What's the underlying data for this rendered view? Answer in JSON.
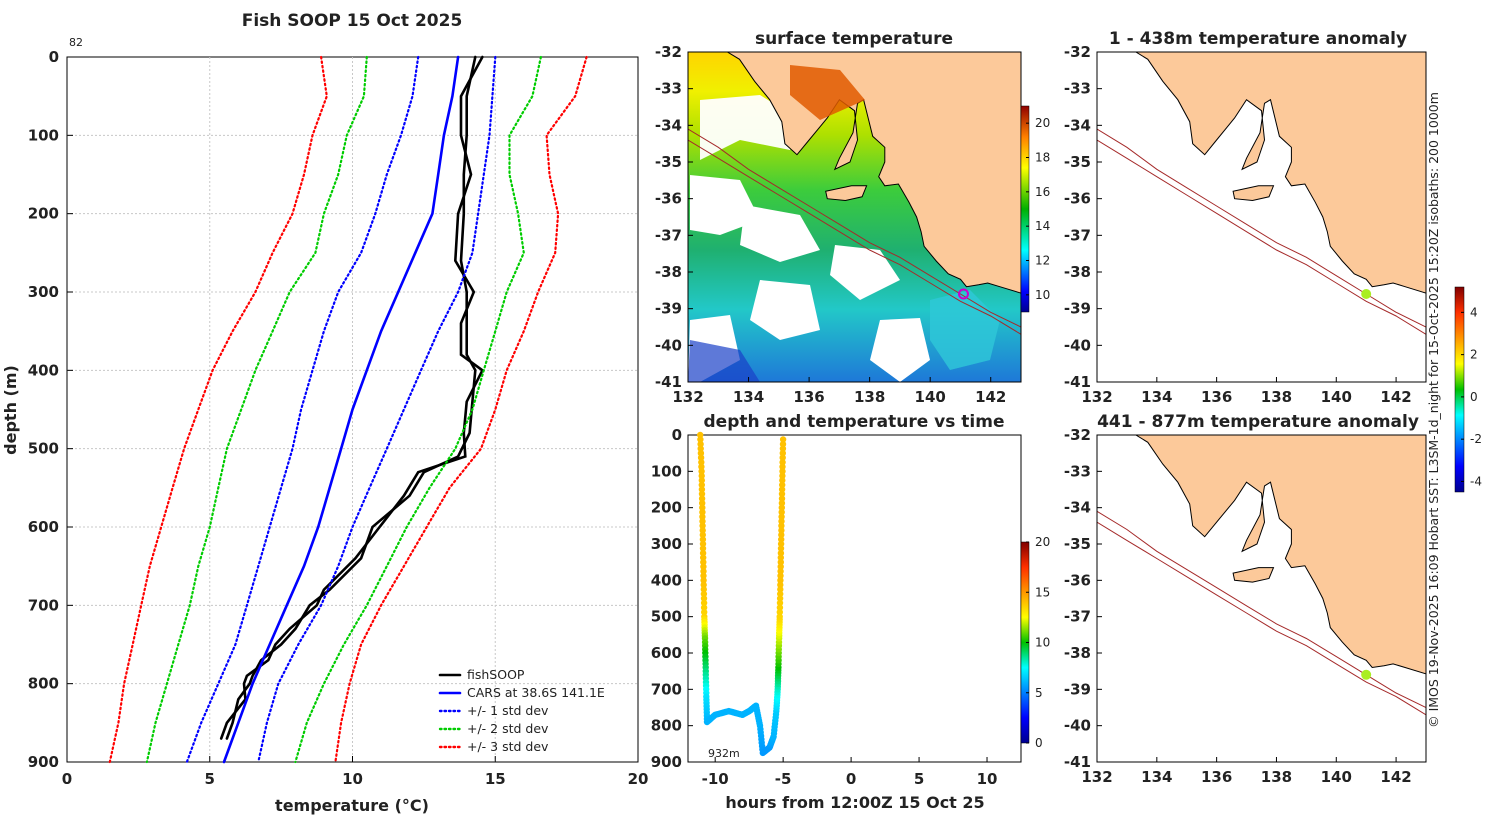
{
  "chart_data": [
    {
      "type": "line",
      "title": "Fish SOOP 15 Oct 2025",
      "xlabel": "temperature (°C)",
      "ylabel": "depth (m)",
      "xlim": [
        0,
        20
      ],
      "ylim": [
        900,
        0
      ],
      "xticks": [
        0,
        5,
        10,
        15,
        20
      ],
      "yticks": [
        0,
        100,
        200,
        300,
        400,
        500,
        600,
        700,
        800,
        900
      ],
      "corner_note": "82",
      "series": [
        {
          "name": "fishSOOP",
          "color": "#000000",
          "style": "solid",
          "points": [
            [
              14.3,
              0
            ],
            [
              14.0,
              50
            ],
            [
              14.0,
              100
            ],
            [
              13.9,
              150
            ],
            [
              13.9,
              200
            ],
            [
              13.8,
              260
            ],
            [
              14.0,
              300
            ],
            [
              14.0,
              340
            ],
            [
              14.0,
              380
            ],
            [
              14.3,
              400
            ],
            [
              14.2,
              440
            ],
            [
              14.1,
              480
            ],
            [
              13.7,
              510
            ],
            [
              12.5,
              530
            ],
            [
              12.0,
              560
            ],
            [
              10.7,
              600
            ],
            [
              10.3,
              640
            ],
            [
              9.2,
              680
            ],
            [
              8.5,
              700
            ],
            [
              8.0,
              730
            ],
            [
              7.5,
              750
            ],
            [
              6.8,
              770
            ],
            [
              6.5,
              790
            ],
            [
              6.4,
              800
            ],
            [
              6.0,
              820
            ],
            [
              5.8,
              850
            ],
            [
              5.6,
              870
            ]
          ]
        },
        {
          "name": "CARS at 38.6S 141.1E",
          "color": "#0000ff",
          "style": "solid",
          "points": [
            [
              13.7,
              0
            ],
            [
              13.5,
              50
            ],
            [
              13.2,
              100
            ],
            [
              13.0,
              150
            ],
            [
              12.8,
              200
            ],
            [
              12.2,
              250
            ],
            [
              11.6,
              300
            ],
            [
              11.0,
              350
            ],
            [
              10.5,
              400
            ],
            [
              10.0,
              450
            ],
            [
              9.6,
              500
            ],
            [
              9.2,
              550
            ],
            [
              8.8,
              600
            ],
            [
              8.3,
              650
            ],
            [
              7.7,
              700
            ],
            [
              7.1,
              750
            ],
            [
              6.5,
              800
            ],
            [
              6.0,
              850
            ],
            [
              5.5,
              900
            ]
          ]
        },
        {
          "name": "+/- 1 std dev",
          "color": "#0000ff",
          "style": "dotted",
          "upper": [
            [
              15.0,
              0
            ],
            [
              14.9,
              50
            ],
            [
              14.8,
              100
            ],
            [
              14.6,
              150
            ],
            [
              14.4,
              200
            ],
            [
              14.2,
              250
            ],
            [
              13.7,
              300
            ],
            [
              13.0,
              350
            ],
            [
              12.4,
              400
            ],
            [
              11.8,
              450
            ],
            [
              11.2,
              500
            ],
            [
              10.6,
              550
            ],
            [
              10.0,
              600
            ],
            [
              9.5,
              650
            ],
            [
              8.9,
              700
            ],
            [
              8.1,
              750
            ],
            [
              7.4,
              800
            ],
            [
              7.0,
              850
            ],
            [
              6.7,
              900
            ]
          ],
          "lower": [
            [
              12.3,
              0
            ],
            [
              12.1,
              50
            ],
            [
              11.7,
              100
            ],
            [
              11.2,
              150
            ],
            [
              10.8,
              200
            ],
            [
              10.3,
              250
            ],
            [
              9.5,
              300
            ],
            [
              9.0,
              350
            ],
            [
              8.6,
              400
            ],
            [
              8.2,
              450
            ],
            [
              7.9,
              500
            ],
            [
              7.5,
              550
            ],
            [
              7.1,
              600
            ],
            [
              6.7,
              650
            ],
            [
              6.3,
              700
            ],
            [
              5.9,
              750
            ],
            [
              5.3,
              800
            ],
            [
              4.7,
              850
            ],
            [
              4.2,
              900
            ]
          ]
        },
        {
          "name": "+/- 2 std dev",
          "color": "#00cc00",
          "style": "dotted",
          "upper": [
            [
              16.6,
              0
            ],
            [
              16.3,
              50
            ],
            [
              15.5,
              100
            ],
            [
              15.5,
              150
            ],
            [
              15.8,
              200
            ],
            [
              16.0,
              250
            ],
            [
              15.4,
              300
            ],
            [
              15.0,
              350
            ],
            [
              14.6,
              400
            ],
            [
              14.2,
              450
            ],
            [
              13.6,
              500
            ],
            [
              12.7,
              550
            ],
            [
              11.9,
              600
            ],
            [
              11.2,
              650
            ],
            [
              10.5,
              700
            ],
            [
              9.7,
              750
            ],
            [
              9.0,
              800
            ],
            [
              8.4,
              850
            ],
            [
              8.0,
              900
            ]
          ],
          "lower": [
            [
              10.5,
              0
            ],
            [
              10.4,
              50
            ],
            [
              9.8,
              100
            ],
            [
              9.5,
              150
            ],
            [
              9.0,
              200
            ],
            [
              8.7,
              250
            ],
            [
              7.8,
              300
            ],
            [
              7.2,
              350
            ],
            [
              6.6,
              400
            ],
            [
              6.1,
              450
            ],
            [
              5.6,
              500
            ],
            [
              5.3,
              550
            ],
            [
              5.0,
              600
            ],
            [
              4.6,
              650
            ],
            [
              4.3,
              700
            ],
            [
              3.9,
              750
            ],
            [
              3.5,
              800
            ],
            [
              3.1,
              850
            ],
            [
              2.8,
              900
            ]
          ]
        },
        {
          "name": "+/- 3 std dev",
          "color": "#ff0000",
          "style": "dotted",
          "upper": [
            [
              18.2,
              0
            ],
            [
              17.8,
              50
            ],
            [
              16.8,
              100
            ],
            [
              16.9,
              150
            ],
            [
              17.2,
              200
            ],
            [
              17.1,
              250
            ],
            [
              16.5,
              300
            ],
            [
              16.0,
              350
            ],
            [
              15.4,
              400
            ],
            [
              15.0,
              450
            ],
            [
              14.5,
              500
            ],
            [
              13.4,
              550
            ],
            [
              12.6,
              600
            ],
            [
              11.8,
              650
            ],
            [
              11.0,
              700
            ],
            [
              10.3,
              750
            ],
            [
              9.9,
              800
            ],
            [
              9.6,
              850
            ],
            [
              9.4,
              900
            ]
          ],
          "lower": [
            [
              8.9,
              0
            ],
            [
              9.1,
              50
            ],
            [
              8.6,
              100
            ],
            [
              8.3,
              150
            ],
            [
              7.9,
              200
            ],
            [
              7.2,
              250
            ],
            [
              6.6,
              300
            ],
            [
              5.8,
              350
            ],
            [
              5.1,
              400
            ],
            [
              4.6,
              450
            ],
            [
              4.1,
              500
            ],
            [
              3.7,
              550
            ],
            [
              3.3,
              600
            ],
            [
              2.9,
              650
            ],
            [
              2.6,
              700
            ],
            [
              2.3,
              750
            ],
            [
              2.0,
              800
            ],
            [
              1.8,
              850
            ],
            [
              1.5,
              900
            ]
          ]
        }
      ],
      "legend": {
        "position": "bottom-right",
        "entries": [
          "fishSOOP",
          "CARS at 38.6S 141.1E",
          "+/- 1 std dev",
          "+/- 2 std dev",
          "+/- 3 std dev"
        ]
      }
    },
    {
      "type": "heatmap",
      "title": "surface temperature",
      "xlim": [
        132,
        143
      ],
      "ylim": [
        -41,
        -32
      ],
      "xticks": [
        132,
        134,
        136,
        138,
        140,
        142
      ],
      "yticks": [
        -32,
        -33,
        -34,
        -35,
        -36,
        -37,
        -38,
        -39,
        -40,
        -41
      ],
      "marker": {
        "lon": 141.1,
        "lat": -38.6,
        "color": "#cc00cc"
      },
      "colorbar": {
        "min": 9,
        "max": 21,
        "ticks": [
          10,
          12,
          14,
          16,
          18,
          20
        ]
      }
    },
    {
      "type": "scatter",
      "title": "depth and temperature vs time",
      "xlabel": "hours from 12:00Z 15 Oct 25",
      "xlim": [
        -12,
        12.5
      ],
      "ylim": [
        900,
        0
      ],
      "xticks": [
        -10,
        -5,
        0,
        5,
        10
      ],
      "yticks": [
        0,
        100,
        200,
        300,
        400,
        500,
        600,
        700,
        800,
        900
      ],
      "annotation": "932m",
      "points_time_depth_temp": [
        [
          -11.1,
          0,
          14
        ],
        [
          -11.0,
          100,
          14
        ],
        [
          -10.95,
          200,
          14
        ],
        [
          -10.9,
          300,
          14
        ],
        [
          -10.85,
          400,
          14
        ],
        [
          -10.8,
          500,
          13.5
        ],
        [
          -10.75,
          560,
          11
        ],
        [
          -10.7,
          640,
          9
        ],
        [
          -10.65,
          720,
          7
        ],
        [
          -10.6,
          790,
          6
        ],
        [
          -10,
          770,
          6
        ],
        [
          -9,
          760,
          6
        ],
        [
          -8,
          770,
          6
        ],
        [
          -7.5,
          760,
          6
        ],
        [
          -7,
          745,
          6
        ],
        [
          -6.7,
          800,
          6
        ],
        [
          -6.5,
          875,
          5.5
        ],
        [
          -6,
          860,
          5.5
        ],
        [
          -5.7,
          830,
          6
        ],
        [
          -5.5,
          760,
          6.5
        ],
        [
          -5.4,
          700,
          8
        ],
        [
          -5.35,
          640,
          10
        ],
        [
          -5.3,
          560,
          12
        ],
        [
          -5.25,
          500,
          13.5
        ],
        [
          -5.2,
          400,
          14
        ],
        [
          -5.15,
          300,
          14
        ],
        [
          -5.1,
          200,
          14
        ],
        [
          -5.05,
          100,
          14
        ],
        [
          -5.0,
          0,
          14
        ]
      ],
      "colorbar": {
        "min": 0,
        "max": 20,
        "ticks": [
          0,
          5,
          10,
          15,
          20
        ]
      }
    },
    {
      "type": "heatmap",
      "title": "1 - 438m temperature anomaly",
      "xlim": [
        132,
        143
      ],
      "ylim": [
        -41,
        -32
      ],
      "xticks": [
        132,
        134,
        136,
        138,
        140,
        142
      ],
      "yticks": [
        -32,
        -33,
        -34,
        -35,
        -36,
        -37,
        -38,
        -39,
        -40,
        -41
      ],
      "marker": {
        "lon": 141.0,
        "lat": -38.6,
        "color": "#aaee22"
      }
    },
    {
      "type": "heatmap",
      "title": "441 - 877m temperature anomaly",
      "xlim": [
        132,
        143
      ],
      "ylim": [
        -41,
        -32
      ],
      "xticks": [
        132,
        134,
        136,
        138,
        140,
        142
      ],
      "yticks": [
        -32,
        -33,
        -34,
        -35,
        -36,
        -37,
        -38,
        -39,
        -40,
        -41
      ],
      "marker": {
        "lon": 141.0,
        "lat": -38.6,
        "color": "#aaee22"
      }
    }
  ],
  "anomaly_colorbar": {
    "min": -4.5,
    "max": 5.2,
    "ticks": [
      -4,
      -2,
      0,
      2,
      4
    ]
  },
  "side_caption": "© IMOS 19-Nov-2025 16:09 Hobart SST: L3SM-1d_night for 15-Oct-2025 15:20Z isobaths: 200  1000m",
  "colors": {
    "land": "#fcc99a",
    "isobath": "#a52a2a",
    "coast": "#000000"
  }
}
